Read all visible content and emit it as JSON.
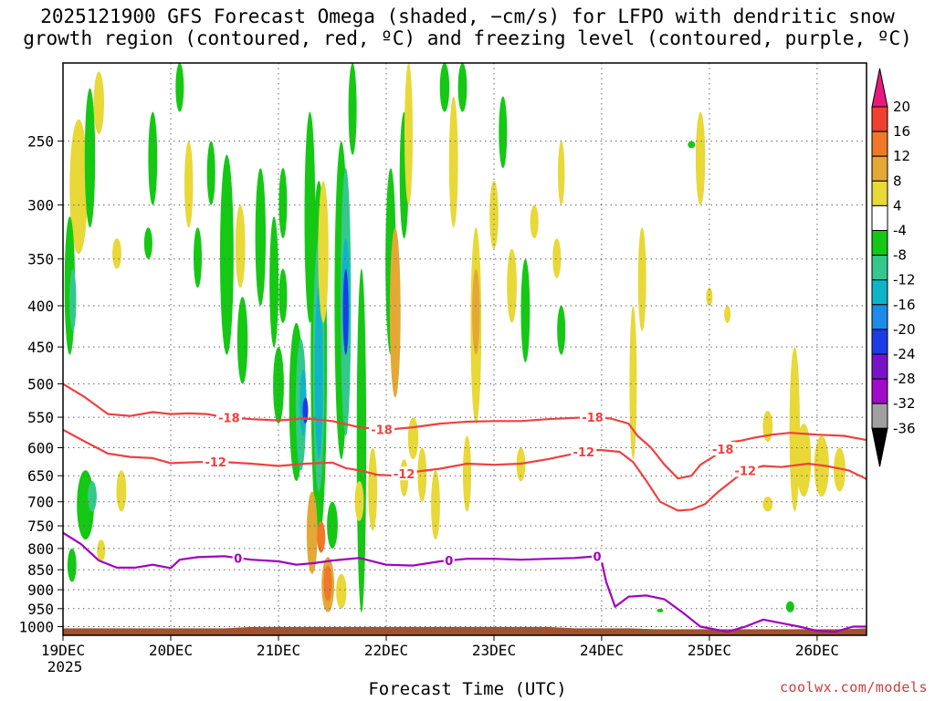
{
  "chart_data": {
    "type": "heatmap",
    "title_line1": "2025121900 GFS Forecast Omega (shaded, −cm/s) for LFPO with dendritic snow",
    "title_line2": "growth region (contoured, red, ºC) and freezing level (contoured, purple, ºC)",
    "xlabel": "Forecast Time (UTC)",
    "ylabel": "",
    "y_scale": "log",
    "y_ticks": [
      250,
      300,
      350,
      400,
      450,
      500,
      550,
      600,
      650,
      700,
      750,
      800,
      850,
      900,
      950,
      1000
    ],
    "ylim": [
      1025,
      200
    ],
    "x_ticks": [
      {
        "label": "19DEC",
        "sub": "2025",
        "t": 0
      },
      {
        "label": "20DEC",
        "sub": "",
        "t": 24
      },
      {
        "label": "21DEC",
        "sub": "",
        "t": 48
      },
      {
        "label": "22DEC",
        "sub": "",
        "t": 72
      },
      {
        "label": "23DEC",
        "sub": "",
        "t": 96
      },
      {
        "label": "24DEC",
        "sub": "",
        "t": 120
      },
      {
        "label": "25DEC",
        "sub": "",
        "t": 144
      },
      {
        "label": "26DEC",
        "sub": "",
        "t": 168
      }
    ],
    "xlim": [
      0,
      179
    ],
    "colorbar": {
      "ticks": [
        20,
        16,
        12,
        8,
        4,
        -4,
        -8,
        -12,
        -16,
        -20,
        -24,
        -28,
        -32,
        -36
      ],
      "colors": [
        "#e8197d",
        "#f04030",
        "#f07828",
        "#e4a834",
        "#e8d838",
        "#ffffff",
        "#14c814",
        "#34c88c",
        "#10b4c8",
        "#1c8ce8",
        "#1c3ce8",
        "#7814c8",
        "#a00ac8",
        "#a0a0a0",
        "#000000"
      ]
    },
    "contours": {
      "minus18": {
        "label": "-18",
        "color": "#f04040",
        "points": [
          [
            0,
            500
          ],
          [
            5,
            520
          ],
          [
            10,
            545
          ],
          [
            15,
            548
          ],
          [
            20,
            542
          ],
          [
            24,
            545
          ],
          [
            28,
            544
          ],
          [
            32,
            545
          ],
          [
            36,
            550
          ],
          [
            42,
            553
          ],
          [
            48,
            555
          ],
          [
            54,
            552
          ],
          [
            60,
            556
          ],
          [
            66,
            566
          ],
          [
            72,
            570
          ],
          [
            78,
            566
          ],
          [
            84,
            560
          ],
          [
            90,
            557
          ],
          [
            96,
            556
          ],
          [
            102,
            556
          ],
          [
            108,
            553
          ],
          [
            114,
            551
          ],
          [
            118,
            550
          ],
          [
            122,
            552
          ],
          [
            126,
            560
          ],
          [
            128,
            580
          ],
          [
            131,
            600
          ],
          [
            134,
            630
          ],
          [
            137,
            655
          ],
          [
            140,
            650
          ],
          [
            142,
            630
          ],
          [
            145,
            615
          ],
          [
            149,
            590
          ],
          [
            151,
            588
          ],
          [
            154,
            583
          ],
          [
            158,
            578
          ],
          [
            162,
            575
          ],
          [
            168,
            578
          ],
          [
            174,
            580
          ],
          [
            179,
            587
          ]
        ]
      },
      "minus12": {
        "label": "-12",
        "color": "#f04040",
        "points": [
          [
            0,
            570
          ],
          [
            5,
            590
          ],
          [
            10,
            610
          ],
          [
            15,
            616
          ],
          [
            20,
            618
          ],
          [
            24,
            627
          ],
          [
            30,
            625
          ],
          [
            36,
            625
          ],
          [
            42,
            628
          ],
          [
            48,
            632
          ],
          [
            54,
            628
          ],
          [
            60,
            626
          ],
          [
            63,
            636
          ],
          [
            66,
            640
          ],
          [
            70,
            648
          ],
          [
            74,
            650
          ],
          [
            78,
            643
          ],
          [
            84,
            637
          ],
          [
            90,
            628
          ],
          [
            96,
            630
          ],
          [
            102,
            628
          ],
          [
            108,
            620
          ],
          [
            114,
            610
          ],
          [
            118,
            604
          ],
          [
            120,
            604
          ],
          [
            124,
            607
          ],
          [
            127,
            625
          ],
          [
            130,
            660
          ],
          [
            133,
            700
          ],
          [
            137,
            718
          ],
          [
            140,
            716
          ],
          [
            143,
            705
          ],
          [
            146,
            680
          ],
          [
            149,
            660
          ],
          [
            152,
            640
          ],
          [
            156,
            632
          ],
          [
            160,
            634
          ],
          [
            166,
            628
          ],
          [
            170,
            632
          ],
          [
            175,
            640
          ],
          [
            179,
            656
          ]
        ]
      },
      "zero": {
        "label": "0",
        "color": "#a000c0",
        "points": [
          [
            0,
            765
          ],
          [
            4,
            790
          ],
          [
            8,
            828
          ],
          [
            12,
            845
          ],
          [
            16,
            845
          ],
          [
            20,
            838
          ],
          [
            24,
            846
          ],
          [
            26,
            826
          ],
          [
            30,
            820
          ],
          [
            36,
            818
          ],
          [
            42,
            826
          ],
          [
            48,
            830
          ],
          [
            52,
            838
          ],
          [
            56,
            834
          ],
          [
            60,
            828
          ],
          [
            66,
            822
          ],
          [
            72,
            838
          ],
          [
            78,
            840
          ],
          [
            84,
            830
          ],
          [
            90,
            824
          ],
          [
            96,
            824
          ],
          [
            102,
            826
          ],
          [
            108,
            824
          ],
          [
            114,
            822
          ],
          [
            119,
            818
          ],
          [
            120,
            830
          ],
          [
            121,
            880
          ],
          [
            123,
            945
          ],
          [
            126,
            918
          ],
          [
            130,
            915
          ],
          [
            134,
            925
          ],
          [
            138,
            960
          ],
          [
            142,
            1000
          ],
          [
            148,
            1015
          ],
          [
            152,
            1000
          ],
          [
            156,
            980
          ],
          [
            160,
            990
          ],
          [
            164,
            1000
          ],
          [
            168,
            1012
          ],
          [
            172,
            1015
          ],
          [
            176,
            1000
          ],
          [
            179,
            1000
          ]
        ]
      }
    },
    "blobs": [
      {
        "t": 3.5,
        "p1": 255,
        "p2": 325,
        "w": 1.8,
        "v": 12
      },
      {
        "t": 3.5,
        "p1": 235,
        "p2": 345,
        "w": 3.2,
        "v": 6
      },
      {
        "t": 8,
        "p1": 205,
        "p2": 245,
        "w": 1.5,
        "v": 6
      },
      {
        "t": 12,
        "p1": 330,
        "p2": 360,
        "w": 1.2,
        "v": 6
      },
      {
        "t": 5,
        "p1": 640,
        "p2": 780,
        "w": 3,
        "v": -8
      },
      {
        "t": 6.5,
        "p1": 660,
        "p2": 720,
        "w": 1.2,
        "v": -12
      },
      {
        "t": 2,
        "p1": 800,
        "p2": 880,
        "w": 1.2,
        "v": -8
      },
      {
        "t": 1.5,
        "p1": 310,
        "p2": 460,
        "w": 1.5,
        "v": -8
      },
      {
        "t": 2.2,
        "p1": 360,
        "p2": 430,
        "w": 0.7,
        "v": -12
      },
      {
        "t": 13,
        "p1": 640,
        "p2": 720,
        "w": 1.4,
        "v": 6
      },
      {
        "t": 8.5,
        "p1": 780,
        "p2": 830,
        "w": 1,
        "v": 6
      },
      {
        "t": 6,
        "p1": 215,
        "p2": 320,
        "w": 1.5,
        "v": -8
      },
      {
        "t": 20,
        "p1": 230,
        "p2": 300,
        "w": 1.2,
        "v": -8
      },
      {
        "t": 19,
        "p1": 320,
        "p2": 350,
        "w": 1,
        "v": -8
      },
      {
        "t": 26,
        "p1": 200,
        "p2": 230,
        "w": 1,
        "v": -8
      },
      {
        "t": 28,
        "p1": 250,
        "p2": 320,
        "w": 1.1,
        "v": 6
      },
      {
        "t": 33,
        "p1": 250,
        "p2": 300,
        "w": 1,
        "v": -8
      },
      {
        "t": 30,
        "p1": 320,
        "p2": 380,
        "w": 1,
        "v": -8
      },
      {
        "t": 36.5,
        "p1": 260,
        "p2": 460,
        "w": 2.2,
        "v": -8
      },
      {
        "t": 39.5,
        "p1": 300,
        "p2": 380,
        "w": 1.4,
        "v": 6
      },
      {
        "t": 40,
        "p1": 390,
        "p2": 500,
        "w": 1.5,
        "v": -8
      },
      {
        "t": 44,
        "p1": 270,
        "p2": 400,
        "w": 1.5,
        "v": -8
      },
      {
        "t": 47,
        "p1": 310,
        "p2": 450,
        "w": 1.2,
        "v": -8
      },
      {
        "t": 48,
        "p1": 450,
        "p2": 560,
        "w": 1.6,
        "v": -8
      },
      {
        "t": 49,
        "p1": 270,
        "p2": 330,
        "w": 1,
        "v": -8
      },
      {
        "t": 49,
        "p1": 360,
        "p2": 420,
        "w": 1,
        "v": -8
      },
      {
        "t": 52,
        "p1": 420,
        "p2": 660,
        "w": 2.4,
        "v": -8
      },
      {
        "t": 53,
        "p1": 440,
        "p2": 640,
        "w": 1.5,
        "v": -12
      },
      {
        "t": 53.5,
        "p1": 480,
        "p2": 580,
        "w": 0.7,
        "v": -16
      },
      {
        "t": 54,
        "p1": 520,
        "p2": 560,
        "w": 0.4,
        "v": -24
      },
      {
        "t": 55,
        "p1": 230,
        "p2": 420,
        "w": 1.6,
        "v": -8
      },
      {
        "t": 57,
        "p1": 280,
        "p2": 780,
        "w": 2.8,
        "v": -8
      },
      {
        "t": 57,
        "p1": 330,
        "p2": 680,
        "w": 1.8,
        "v": -12
      },
      {
        "t": 57,
        "p1": 380,
        "p2": 620,
        "w": 1,
        "v": -16
      },
      {
        "t": 58,
        "p1": 280,
        "p2": 420,
        "w": 1.5,
        "v": 6
      },
      {
        "t": 62,
        "p1": 250,
        "p2": 620,
        "w": 2.2,
        "v": -8
      },
      {
        "t": 63,
        "p1": 270,
        "p2": 580,
        "w": 1.5,
        "v": -12
      },
      {
        "t": 63,
        "p1": 330,
        "p2": 460,
        "w": 0.9,
        "v": -16
      },
      {
        "t": 63,
        "p1": 360,
        "p2": 460,
        "w": 0.4,
        "v": -24
      },
      {
        "t": 64.5,
        "p1": 200,
        "p2": 260,
        "w": 1,
        "v": -8
      },
      {
        "t": 66.5,
        "p1": 360,
        "p2": 960,
        "w": 1.3,
        "v": -8
      },
      {
        "t": 55.5,
        "p1": 680,
        "p2": 860,
        "w": 1.6,
        "v": 8
      },
      {
        "t": 57.5,
        "p1": 740,
        "p2": 810,
        "w": 1,
        "v": 12
      },
      {
        "t": 59,
        "p1": 820,
        "p2": 960,
        "w": 2,
        "v": 8
      },
      {
        "t": 59,
        "p1": 840,
        "p2": 930,
        "w": 1,
        "v": 12
      },
      {
        "t": 62,
        "p1": 860,
        "p2": 950,
        "w": 1.5,
        "v": 6
      },
      {
        "t": 60,
        "p1": 700,
        "p2": 800,
        "w": 1.6,
        "v": -8
      },
      {
        "t": 66,
        "p1": 660,
        "p2": 740,
        "w": 1.2,
        "v": 6
      },
      {
        "t": 69,
        "p1": 600,
        "p2": 760,
        "w": 1.2,
        "v": 6
      },
      {
        "t": 73,
        "p1": 270,
        "p2": 460,
        "w": 1.5,
        "v": -8
      },
      {
        "t": 76,
        "p1": 230,
        "p2": 330,
        "w": 1.2,
        "v": -8
      },
      {
        "t": 77,
        "p1": 200,
        "p2": 300,
        "w": 1,
        "v": 6
      },
      {
        "t": 74,
        "p1": 320,
        "p2": 520,
        "w": 1.6,
        "v": 8
      },
      {
        "t": 78,
        "p1": 550,
        "p2": 620,
        "w": 1.5,
        "v": 6
      },
      {
        "t": 76,
        "p1": 620,
        "p2": 690,
        "w": 1,
        "v": 6
      },
      {
        "t": 80,
        "p1": 600,
        "p2": 700,
        "w": 1.2,
        "v": 6
      },
      {
        "t": 83,
        "p1": 640,
        "p2": 780,
        "w": 1.2,
        "v": 6
      },
      {
        "t": 87,
        "p1": 220,
        "p2": 320,
        "w": 1.2,
        "v": 6
      },
      {
        "t": 85,
        "p1": 200,
        "p2": 230,
        "w": 1.3,
        "v": -8
      },
      {
        "t": 89,
        "p1": 200,
        "p2": 230,
        "w": 1.2,
        "v": -8
      },
      {
        "t": 92,
        "p1": 320,
        "p2": 560,
        "w": 1.6,
        "v": 6
      },
      {
        "t": 92,
        "p1": 360,
        "p2": 460,
        "w": 0.9,
        "v": 8
      },
      {
        "t": 90,
        "p1": 580,
        "p2": 720,
        "w": 1,
        "v": 6
      },
      {
        "t": 96,
        "p1": 280,
        "p2": 340,
        "w": 1.2,
        "v": 6
      },
      {
        "t": 98,
        "p1": 220,
        "p2": 270,
        "w": 1,
        "v": -8
      },
      {
        "t": 100,
        "p1": 340,
        "p2": 420,
        "w": 1.4,
        "v": 6
      },
      {
        "t": 102,
        "p1": 600,
        "p2": 660,
        "w": 1.2,
        "v": 6
      },
      {
        "t": 103,
        "p1": 350,
        "p2": 470,
        "w": 1.2,
        "v": -8
      },
      {
        "t": 105,
        "p1": 300,
        "p2": 330,
        "w": 1,
        "v": 6
      },
      {
        "t": 110,
        "p1": 330,
        "p2": 370,
        "w": 1,
        "v": 6
      },
      {
        "t": 111,
        "p1": 250,
        "p2": 300,
        "w": 0.7,
        "v": 6
      },
      {
        "t": 129,
        "p1": 320,
        "p2": 430,
        "w": 1,
        "v": 6
      },
      {
        "t": 127,
        "p1": 400,
        "p2": 620,
        "w": 0.8,
        "v": 6
      },
      {
        "t": 142,
        "p1": 230,
        "p2": 300,
        "w": 1.3,
        "v": 6
      },
      {
        "t": 144,
        "p1": 380,
        "p2": 400,
        "w": 0.6,
        "v": 6
      },
      {
        "t": 148,
        "p1": 400,
        "p2": 420,
        "w": 0.6,
        "v": 6
      },
      {
        "t": 157,
        "p1": 540,
        "p2": 590,
        "w": 1.4,
        "v": 6
      },
      {
        "t": 157,
        "p1": 690,
        "p2": 720,
        "w": 1.4,
        "v": 6
      },
      {
        "t": 163,
        "p1": 450,
        "p2": 720,
        "w": 1.5,
        "v": 6
      },
      {
        "t": 165,
        "p1": 560,
        "p2": 690,
        "w": 2.5,
        "v": 6
      },
      {
        "t": 169,
        "p1": 580,
        "p2": 690,
        "w": 2.5,
        "v": 6
      },
      {
        "t": 173,
        "p1": 600,
        "p2": 680,
        "w": 1.8,
        "v": 6
      },
      {
        "t": 162,
        "p1": 930,
        "p2": 960,
        "w": 1,
        "v": -8
      },
      {
        "t": 133,
        "p1": 950,
        "p2": 960,
        "w": 0.6,
        "v": -8
      },
      {
        "t": 140,
        "p1": 250,
        "p2": 255,
        "w": 0.8,
        "v": -8
      },
      {
        "t": 111,
        "p1": 400,
        "p2": 460,
        "w": 1,
        "v": -8
      }
    ],
    "colored_bar": {
      "name": "ground",
      "color": "#a0522d",
      "top": 1005
    }
  },
  "watermark": "coolwx.com/models"
}
